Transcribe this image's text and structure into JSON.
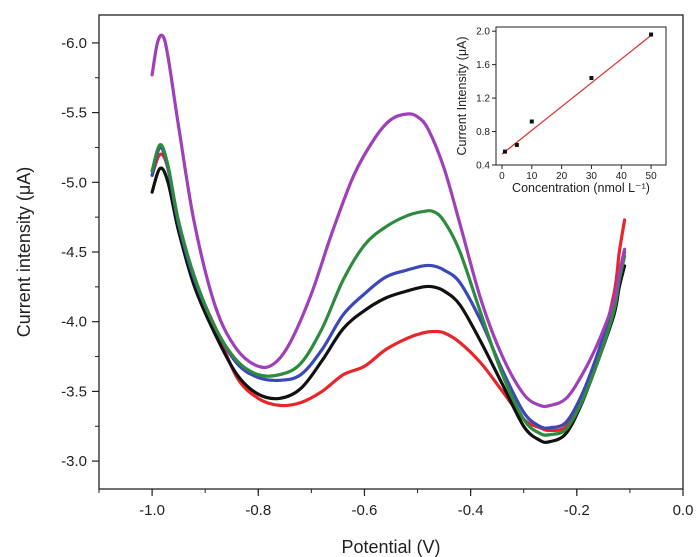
{
  "chart_data": [
    {
      "type": "line",
      "xlabel": "Potential (V)",
      "ylabel": "Current intensity (μA)",
      "xlim": [
        -1.1,
        0.0
      ],
      "ylim": [
        -2.8,
        -6.2
      ],
      "x_ticks": [
        -1.0,
        -0.8,
        -0.6,
        -0.4,
        -0.2,
        0.0
      ],
      "x_tick_labels": [
        "-1.0",
        "-0.8",
        "-0.6",
        "-0.4",
        "-0.2",
        "0.0"
      ],
      "y_ticks": [
        -3.0,
        -3.5,
        -4.0,
        -4.5,
        -5.0,
        -5.5,
        -6.0
      ],
      "y_tick_labels": [
        "-3.0",
        "-3.5",
        "-4.0",
        "-4.5",
        "-5.0",
        "-5.5",
        "-6.0"
      ],
      "grid": false,
      "series": [
        {
          "color": "#e8262a",
          "x": [
            -1.0,
            -0.985,
            -0.97,
            -0.95,
            -0.92,
            -0.88,
            -0.84,
            -0.8,
            -0.76,
            -0.72,
            -0.68,
            -0.64,
            -0.6,
            -0.56,
            -0.52,
            -0.49,
            -0.47,
            -0.45,
            -0.42,
            -0.38,
            -0.34,
            -0.3,
            -0.27,
            -0.25,
            -0.22,
            -0.19,
            -0.16,
            -0.13,
            -0.12,
            -0.11
          ],
          "y": [
            -5.05,
            -5.2,
            -5.1,
            -4.7,
            -4.3,
            -3.95,
            -3.6,
            -3.45,
            -3.4,
            -3.42,
            -3.5,
            -3.62,
            -3.68,
            -3.8,
            -3.88,
            -3.92,
            -3.93,
            -3.92,
            -3.85,
            -3.7,
            -3.5,
            -3.3,
            -3.24,
            -3.22,
            -3.25,
            -3.45,
            -3.75,
            -4.2,
            -4.5,
            -4.73
          ]
        },
        {
          "color": "#111111",
          "x": [
            -1.0,
            -0.985,
            -0.97,
            -0.95,
            -0.92,
            -0.88,
            -0.84,
            -0.8,
            -0.76,
            -0.72,
            -0.68,
            -0.64,
            -0.6,
            -0.56,
            -0.52,
            -0.49,
            -0.47,
            -0.45,
            -0.42,
            -0.38,
            -0.34,
            -0.3,
            -0.27,
            -0.25,
            -0.22,
            -0.19,
            -0.16,
            -0.13,
            -0.12,
            -0.11
          ],
          "y": [
            -4.93,
            -5.1,
            -5.0,
            -4.65,
            -4.25,
            -3.9,
            -3.62,
            -3.48,
            -3.45,
            -3.52,
            -3.72,
            -3.95,
            -4.08,
            -4.17,
            -4.22,
            -4.25,
            -4.25,
            -4.22,
            -4.12,
            -3.85,
            -3.55,
            -3.25,
            -3.15,
            -3.14,
            -3.2,
            -3.42,
            -3.72,
            -4.05,
            -4.25,
            -4.4
          ]
        },
        {
          "color": "#3b49b8",
          "x": [
            -1.0,
            -0.985,
            -0.97,
            -0.95,
            -0.92,
            -0.88,
            -0.84,
            -0.8,
            -0.76,
            -0.72,
            -0.68,
            -0.64,
            -0.6,
            -0.56,
            -0.52,
            -0.49,
            -0.47,
            -0.45,
            -0.42,
            -0.38,
            -0.34,
            -0.3,
            -0.27,
            -0.25,
            -0.22,
            -0.19,
            -0.16,
            -0.13,
            -0.12,
            -0.11
          ],
          "y": [
            -5.05,
            -5.25,
            -5.1,
            -4.7,
            -4.3,
            -3.95,
            -3.7,
            -3.6,
            -3.58,
            -3.62,
            -3.8,
            -4.05,
            -4.2,
            -4.32,
            -4.37,
            -4.4,
            -4.4,
            -4.37,
            -4.28,
            -4.0,
            -3.65,
            -3.35,
            -3.25,
            -3.24,
            -3.28,
            -3.48,
            -3.78,
            -4.15,
            -4.35,
            -4.5
          ]
        },
        {
          "color": "#2e8b3e",
          "x": [
            -1.0,
            -0.985,
            -0.97,
            -0.95,
            -0.92,
            -0.88,
            -0.84,
            -0.8,
            -0.76,
            -0.72,
            -0.68,
            -0.64,
            -0.6,
            -0.56,
            -0.52,
            -0.49,
            -0.47,
            -0.45,
            -0.42,
            -0.38,
            -0.34,
            -0.3,
            -0.27,
            -0.25,
            -0.22,
            -0.19,
            -0.16,
            -0.13,
            -0.12,
            -0.11
          ],
          "y": [
            -5.08,
            -5.27,
            -5.12,
            -4.72,
            -4.32,
            -3.95,
            -3.72,
            -3.62,
            -3.62,
            -3.7,
            -3.95,
            -4.3,
            -4.55,
            -4.68,
            -4.76,
            -4.79,
            -4.79,
            -4.72,
            -4.5,
            -4.05,
            -3.62,
            -3.3,
            -3.2,
            -3.19,
            -3.23,
            -3.43,
            -3.72,
            -4.08,
            -4.3,
            -4.47
          ]
        },
        {
          "color": "#a040b8",
          "x": [
            -1.0,
            -0.99,
            -0.98,
            -0.97,
            -0.95,
            -0.92,
            -0.88,
            -0.84,
            -0.8,
            -0.77,
            -0.74,
            -0.7,
            -0.66,
            -0.62,
            -0.58,
            -0.55,
            -0.52,
            -0.5,
            -0.48,
            -0.45,
            -0.42,
            -0.38,
            -0.34,
            -0.3,
            -0.27,
            -0.25,
            -0.22,
            -0.19,
            -0.16,
            -0.13,
            -0.12,
            -0.11
          ],
          "y": [
            -5.77,
            -6.0,
            -6.05,
            -5.9,
            -5.4,
            -4.7,
            -4.1,
            -3.8,
            -3.68,
            -3.7,
            -3.85,
            -4.2,
            -4.65,
            -5.05,
            -5.32,
            -5.45,
            -5.49,
            -5.47,
            -5.38,
            -5.1,
            -4.7,
            -4.15,
            -3.75,
            -3.48,
            -3.4,
            -3.4,
            -3.45,
            -3.62,
            -3.85,
            -4.15,
            -4.35,
            -4.52
          ]
        }
      ]
    },
    {
      "type": "scatter",
      "xlabel": "Concentration (nmol L⁻¹)",
      "ylabel": "Current Intensity (μA)",
      "xlim": [
        -2,
        55
      ],
      "ylim": [
        0.4,
        2.05
      ],
      "x_ticks": [
        0,
        10,
        20,
        30,
        40,
        50
      ],
      "x_tick_labels": [
        "0",
        "10",
        "20",
        "30",
        "40",
        "50"
      ],
      "y_ticks": [
        0.4,
        0.8,
        1.2,
        1.6,
        2.0
      ],
      "y_tick_labels": [
        "0.4",
        "0.8",
        "1.2",
        "1.6",
        "2.0"
      ],
      "points": {
        "x": [
          1,
          5,
          10,
          30,
          50
        ],
        "y": [
          0.56,
          0.64,
          0.92,
          1.44,
          1.96
        ]
      },
      "fit_line": {
        "x": [
          0,
          50
        ],
        "y": [
          0.53,
          1.95
        ],
        "color": "#d9302c"
      },
      "marker_color": "#111111",
      "grid": false
    }
  ]
}
